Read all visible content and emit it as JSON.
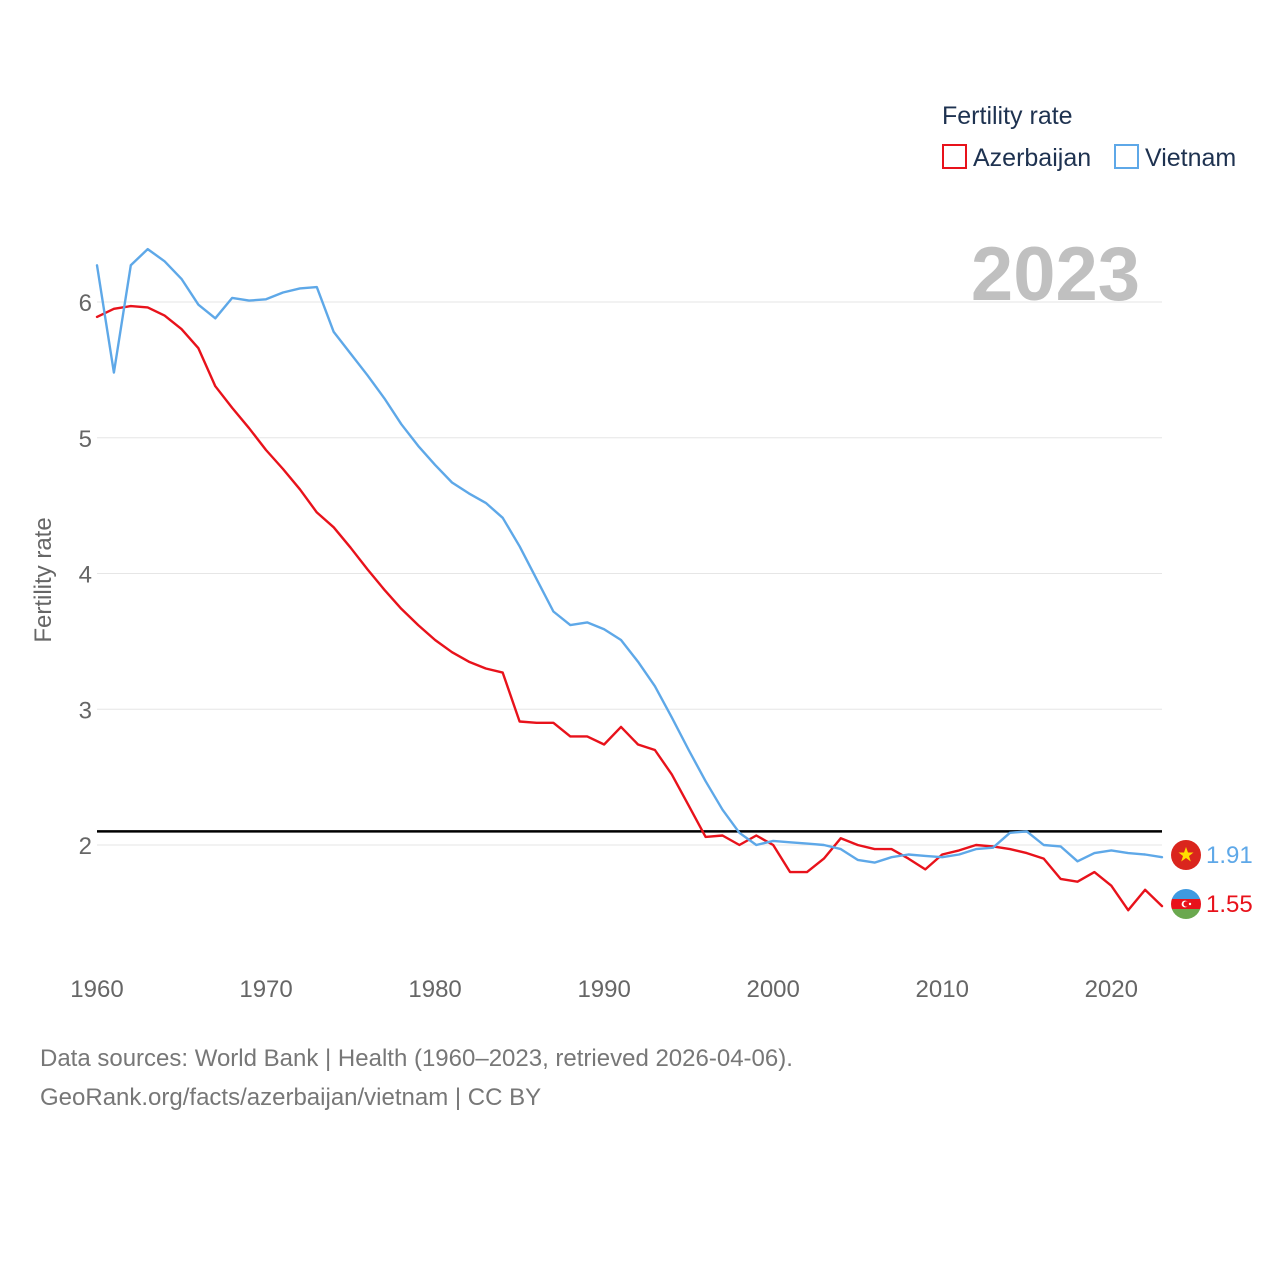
{
  "chart_data": {
    "type": "line",
    "title": "Fertility rate",
    "year_label": "2023",
    "xlabel": "",
    "ylabel": "Fertility rate",
    "xlim": [
      1960,
      2023
    ],
    "ylim": [
      1.0,
      6.8
    ],
    "x_ticks": [
      1960,
      1970,
      1980,
      1990,
      2000,
      2010,
      2020
    ],
    "y_ticks": [
      2,
      3,
      4,
      5,
      6
    ],
    "reference_line": 2.1,
    "legend": {
      "title": "Fertility rate",
      "placement": "top-right"
    },
    "x": [
      1960,
      1961,
      1962,
      1963,
      1964,
      1965,
      1966,
      1967,
      1968,
      1969,
      1970,
      1971,
      1972,
      1973,
      1974,
      1975,
      1976,
      1977,
      1978,
      1979,
      1980,
      1981,
      1982,
      1983,
      1984,
      1985,
      1986,
      1987,
      1988,
      1989,
      1990,
      1991,
      1992,
      1993,
      1994,
      1995,
      1996,
      1997,
      1998,
      1999,
      2000,
      2001,
      2002,
      2003,
      2004,
      2005,
      2006,
      2007,
      2008,
      2009,
      2010,
      2011,
      2012,
      2013,
      2014,
      2015,
      2016,
      2017,
      2018,
      2019,
      2020,
      2021,
      2022,
      2023
    ],
    "series": [
      {
        "name": "Azerbaijan",
        "color": "#e8121b",
        "end_value": "1.55",
        "flag_icon": "azerbaijan-flag-icon",
        "values": [
          5.89,
          5.95,
          5.97,
          5.96,
          5.9,
          5.8,
          5.66,
          5.38,
          5.22,
          5.07,
          4.91,
          4.77,
          4.62,
          4.45,
          4.34,
          4.19,
          4.03,
          3.88,
          3.74,
          3.62,
          3.51,
          3.42,
          3.35,
          3.3,
          3.27,
          2.91,
          2.9,
          2.9,
          2.8,
          2.8,
          2.74,
          2.87,
          2.74,
          2.7,
          2.52,
          2.29,
          2.06,
          2.07,
          2.0,
          2.07,
          2.0,
          1.8,
          1.8,
          1.9,
          2.05,
          2.0,
          1.97,
          1.97,
          1.9,
          1.82,
          1.93,
          1.96,
          2.0,
          1.99,
          1.97,
          1.94,
          1.9,
          1.75,
          1.73,
          1.8,
          1.7,
          1.52,
          1.67,
          1.55
        ]
      },
      {
        "name": "Vietnam",
        "color": "#5ea8e8",
        "end_value": "1.91",
        "flag_icon": "vietnam-flag-icon",
        "values": [
          6.27,
          5.48,
          6.27,
          6.39,
          6.3,
          6.17,
          5.98,
          5.88,
          6.03,
          6.01,
          6.02,
          6.07,
          6.1,
          6.11,
          5.78,
          5.62,
          5.46,
          5.29,
          5.1,
          4.94,
          4.8,
          4.67,
          4.59,
          4.52,
          4.41,
          4.2,
          3.96,
          3.72,
          3.62,
          3.64,
          3.59,
          3.51,
          3.35,
          3.17,
          2.94,
          2.7,
          2.47,
          2.26,
          2.09,
          2.0,
          2.03,
          2.02,
          2.01,
          2.0,
          1.97,
          1.89,
          1.87,
          1.91,
          1.93,
          1.92,
          1.91,
          1.93,
          1.97,
          1.98,
          2.09,
          2.1,
          2.0,
          1.99,
          1.88,
          1.94,
          1.96,
          1.94,
          1.93,
          1.91
        ]
      }
    ]
  },
  "footer": {
    "source_line": "Data sources: World Bank | Health (1960–2023, retrieved 2026-04-06).",
    "attribution_line": "GeoRank.org/facts/azerbaijan/vietnam | CC BY"
  }
}
